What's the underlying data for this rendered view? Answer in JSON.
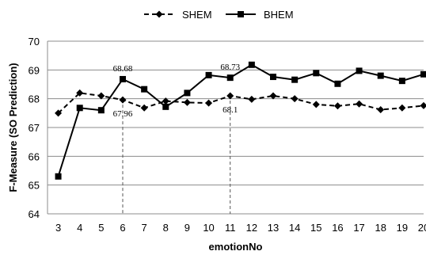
{
  "chart_data": {
    "type": "line",
    "xlabel": "emotionNo",
    "ylabel": "F-Measure (SO Prediction)",
    "x": [
      3,
      4,
      5,
      6,
      7,
      8,
      9,
      10,
      11,
      12,
      13,
      14,
      15,
      16,
      17,
      18,
      19,
      20
    ],
    "ylim": [
      64,
      70
    ],
    "yticks": [
      64,
      65,
      66,
      67,
      68,
      69,
      70
    ],
    "grid": "horizontal",
    "legend_position": "top",
    "series": [
      {
        "name": "SHEM",
        "marker": "diamond",
        "line_style": "dashed",
        "color": "#000000",
        "values": [
          67.5,
          68.2,
          68.1,
          67.96,
          67.68,
          67.92,
          67.87,
          67.85,
          68.1,
          67.98,
          68.1,
          68.0,
          67.8,
          67.75,
          67.82,
          67.62,
          67.68,
          67.76
        ]
      },
      {
        "name": "BHEM",
        "marker": "square",
        "line_style": "solid",
        "color": "#000000",
        "values": [
          65.3,
          67.68,
          67.6,
          68.68,
          68.33,
          67.72,
          68.2,
          68.82,
          68.73,
          69.18,
          68.76,
          68.66,
          68.89,
          68.52,
          68.97,
          68.8,
          68.62,
          68.85
        ]
      }
    ],
    "annotations": [
      {
        "text": "68.68",
        "x": 6,
        "y": 68.68,
        "series": "BHEM",
        "placement": "above"
      },
      {
        "text": "67.96",
        "x": 6,
        "y": 67.96,
        "series": "SHEM",
        "placement": "below"
      },
      {
        "text": "68.73",
        "x": 11,
        "y": 68.73,
        "series": "BHEM",
        "placement": "above"
      },
      {
        "text": "68.1",
        "x": 11,
        "y": 68.1,
        "series": "SHEM",
        "placement": "below"
      }
    ],
    "reference_lines": [
      {
        "x": 6,
        "style": "dashed"
      },
      {
        "x": 11,
        "style": "dashed"
      }
    ]
  }
}
